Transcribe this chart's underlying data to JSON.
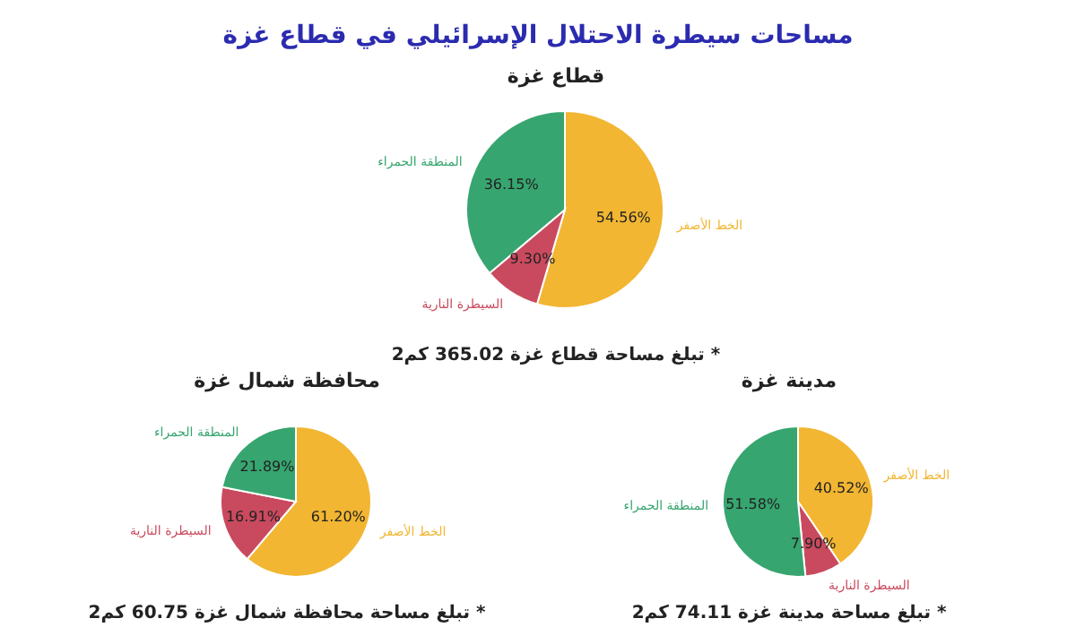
{
  "chart_data": [
    {
      "type": "pie",
      "title": "مساحات سيطرة الاحتلال الإسرائيلي في قطاع غزة",
      "subtitle": "قطاع غزة",
      "categories": [
        "الخط الأصفر",
        "السيطرة النارية",
        "المنطقة الحمراء"
      ],
      "values": [
        54.56,
        9.3,
        36.15
      ],
      "value_labels": [
        "54.56%",
        "9.30%",
        "36.15%"
      ],
      "colors": [
        "#f2b632",
        "#c94a5e",
        "#37a56f"
      ],
      "annotations": [
        "* تبلغ مساحة قطاع غزة 365.02 كم2"
      ]
    },
    {
      "type": "pie",
      "title": "محافظة شمال غزة",
      "categories": [
        "الخط الأصفر",
        "السيطرة النارية",
        "المنطقة الحمراء"
      ],
      "values": [
        61.2,
        16.91,
        21.89
      ],
      "value_labels": [
        "61.20%",
        "16.91%",
        "21.89%"
      ],
      "colors": [
        "#f2b632",
        "#c94a5e",
        "#37a56f"
      ],
      "annotations": [
        "* تبلغ مساحة محافظة شمال غزة 60.75 كم2"
      ]
    },
    {
      "type": "pie",
      "title": "مدينة غزة",
      "categories": [
        "الخط الأصفر",
        "السيطرة النارية",
        "المنطقة الحمراء"
      ],
      "values": [
        40.52,
        7.9,
        51.58
      ],
      "value_labels": [
        "40.52%",
        "7.90%",
        "51.58%"
      ],
      "colors": [
        "#f2b632",
        "#c94a5e",
        "#37a56f"
      ],
      "annotations": [
        "* تبلغ مساحة مدينة غزة 74.11 كم2"
      ]
    }
  ]
}
